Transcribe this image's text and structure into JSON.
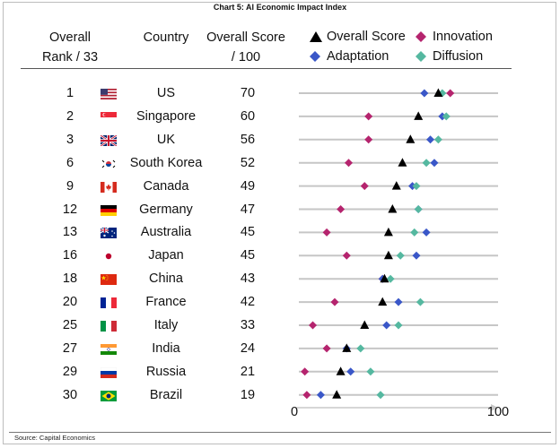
{
  "chart_data": {
    "type": "scatter",
    "title": "Chart 5: AI Economic Impact Index",
    "columns": {
      "rank": "Overall Rank / 33",
      "country": "Country",
      "score": "Overall Score / 100"
    },
    "rank_header_lines": [
      "Overall",
      "Rank / 33"
    ],
    "score_header_lines": [
      "Overall Score",
      "/ 100"
    ],
    "xlim": [
      0,
      100
    ],
    "x_ticks": [
      "0",
      "100"
    ],
    "legend": [
      {
        "name": "Overall Score",
        "marker": "triangle",
        "color": "#000000"
      },
      {
        "name": "Innovation",
        "marker": "diamond",
        "color": "#b5246e"
      },
      {
        "name": "Adaptation",
        "marker": "diamond",
        "color": "#3a57c8"
      },
      {
        "name": "Diffusion",
        "marker": "diamond",
        "color": "#55b8a0"
      }
    ],
    "rows": [
      {
        "rank": "1",
        "country": "US",
        "flag": "us-flag",
        "score": "70",
        "overall": 70,
        "innovation": 76,
        "adaptation": 63,
        "diffusion": 72
      },
      {
        "rank": "2",
        "country": "Singapore",
        "flag": "singapore-flag",
        "score": "60",
        "overall": 60,
        "innovation": 35,
        "adaptation": 72,
        "diffusion": 74
      },
      {
        "rank": "3",
        "country": "UK",
        "flag": "uk-flag",
        "score": "56",
        "overall": 56,
        "innovation": 35,
        "adaptation": 66,
        "diffusion": 70
      },
      {
        "rank": "6",
        "country": "South Korea",
        "flag": "south-korea-flag",
        "score": "52",
        "overall": 52,
        "innovation": 25,
        "adaptation": 68,
        "diffusion": 64
      },
      {
        "rank": "9",
        "country": "Canada",
        "flag": "canada-flag",
        "score": "49",
        "overall": 49,
        "innovation": 33,
        "adaptation": 57,
        "diffusion": 59
      },
      {
        "rank": "12",
        "country": "Germany",
        "flag": "germany-flag",
        "score": "47",
        "overall": 47,
        "innovation": 21,
        "adaptation": 60,
        "diffusion": 60
      },
      {
        "rank": "13",
        "country": "Australia",
        "flag": "australia-flag",
        "score": "45",
        "overall": 45,
        "innovation": 14,
        "adaptation": 64,
        "diffusion": 58
      },
      {
        "rank": "16",
        "country": "Japan",
        "flag": "japan-flag",
        "score": "45",
        "overall": 45,
        "innovation": 24,
        "adaptation": 59,
        "diffusion": 51
      },
      {
        "rank": "18",
        "country": "China",
        "flag": "china-flag",
        "score": "43",
        "overall": 43,
        "innovation": 42,
        "adaptation": 42,
        "diffusion": 46
      },
      {
        "rank": "20",
        "country": "France",
        "flag": "france-flag",
        "score": "42",
        "overall": 42,
        "innovation": 18,
        "adaptation": 50,
        "diffusion": 61
      },
      {
        "rank": "25",
        "country": "Italy",
        "flag": "italy-flag",
        "score": "33",
        "overall": 33,
        "innovation": 7,
        "adaptation": 44,
        "diffusion": 50
      },
      {
        "rank": "27",
        "country": "India",
        "flag": "india-flag",
        "score": "24",
        "overall": 24,
        "innovation": 14,
        "adaptation": 24,
        "diffusion": 31
      },
      {
        "rank": "29",
        "country": "Russia",
        "flag": "russia-flag",
        "score": "21",
        "overall": 21,
        "innovation": 3,
        "adaptation": 26,
        "diffusion": 36
      },
      {
        "rank": "30",
        "country": "Brazil",
        "flag": "brazil-flag",
        "score": "19",
        "overall": 19,
        "innovation": 4,
        "adaptation": 11,
        "diffusion": 41
      }
    ],
    "source": "Source: Capital Economics"
  }
}
